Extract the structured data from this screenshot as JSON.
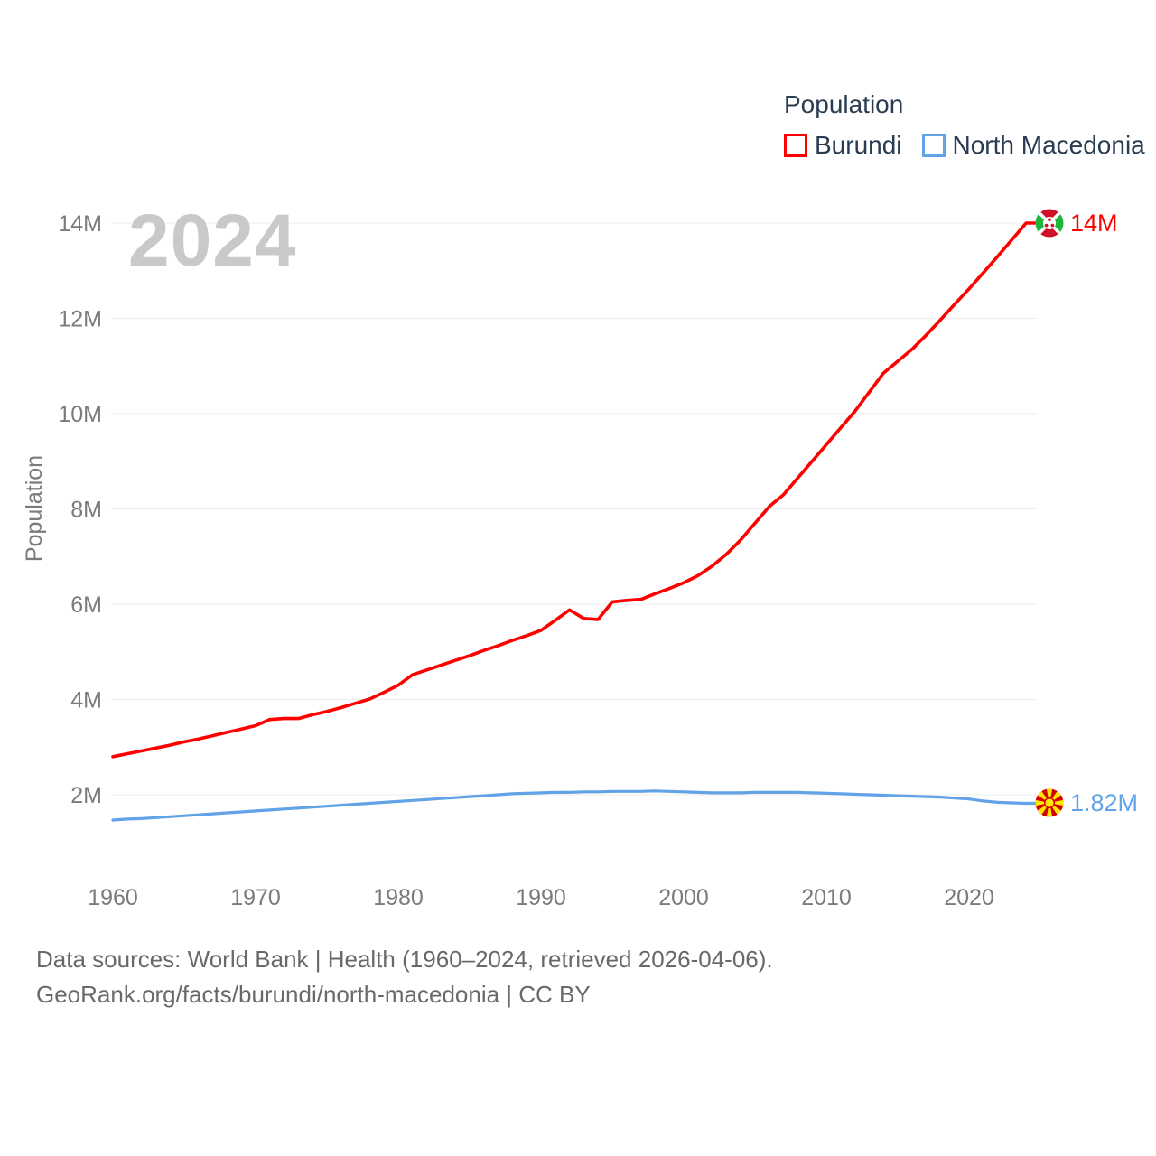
{
  "watermark": "2024",
  "legend": {
    "title": "Population",
    "items": [
      {
        "label": "Burundi",
        "color": "#ff0000"
      },
      {
        "label": "North Macedonia",
        "color": "#61a3e6"
      }
    ]
  },
  "chart_data": {
    "type": "line",
    "title": "Population",
    "xlabel": "",
    "ylabel": "Population",
    "xlim": [
      1960,
      2024
    ],
    "ylim": [
      1.3,
      14.3
    ],
    "grid": "horizontal",
    "legend_position": "top-right",
    "x_ticks": [
      1960,
      1970,
      1980,
      1990,
      2000,
      2010,
      2020
    ],
    "y_ticks": [
      {
        "value": 2,
        "label": "2M"
      },
      {
        "value": 4,
        "label": "4M"
      },
      {
        "value": 6,
        "label": "6M"
      },
      {
        "value": 8,
        "label": "8M"
      },
      {
        "value": 10,
        "label": "10M"
      },
      {
        "value": 12,
        "label": "12M"
      },
      {
        "value": 14,
        "label": "14M"
      }
    ],
    "x": [
      1960,
      1961,
      1962,
      1963,
      1964,
      1965,
      1966,
      1967,
      1968,
      1969,
      1970,
      1971,
      1972,
      1973,
      1974,
      1975,
      1976,
      1977,
      1978,
      1979,
      1980,
      1981,
      1982,
      1983,
      1984,
      1985,
      1986,
      1987,
      1988,
      1989,
      1990,
      1991,
      1992,
      1993,
      1994,
      1995,
      1996,
      1997,
      1998,
      1999,
      2000,
      2001,
      2002,
      2003,
      2004,
      2005,
      2006,
      2007,
      2008,
      2009,
      2010,
      2011,
      2012,
      2013,
      2014,
      2015,
      2016,
      2017,
      2018,
      2019,
      2020,
      2021,
      2022,
      2023,
      2024
    ],
    "series": [
      {
        "name": "Burundi",
        "color": "#ff0000",
        "end_label": "14M",
        "flag": "burundi-flag",
        "values": [
          2.8,
          2.86,
          2.92,
          2.98,
          3.04,
          3.11,
          3.17,
          3.24,
          3.31,
          3.38,
          3.45,
          3.58,
          3.6,
          3.6,
          3.68,
          3.75,
          3.83,
          3.92,
          4.01,
          4.15,
          4.3,
          4.52,
          4.62,
          4.72,
          4.82,
          4.92,
          5.03,
          5.13,
          5.24,
          5.34,
          5.45,
          5.66,
          5.88,
          5.7,
          5.68,
          6.05,
          6.08,
          6.1,
          6.22,
          6.33,
          6.45,
          6.6,
          6.8,
          7.05,
          7.35,
          7.7,
          8.05,
          8.3,
          8.65,
          9.0,
          9.35,
          9.7,
          10.05,
          10.45,
          10.85,
          11.1,
          11.35,
          11.65,
          11.97,
          12.3,
          12.62,
          12.96,
          13.3,
          13.65,
          14.0
        ]
      },
      {
        "name": "North Macedonia",
        "color": "#61a3e6",
        "end_label": "1.82M",
        "flag": "north-macedonia-flag",
        "values": [
          1.47,
          1.49,
          1.5,
          1.52,
          1.54,
          1.56,
          1.58,
          1.6,
          1.62,
          1.64,
          1.66,
          1.68,
          1.7,
          1.72,
          1.74,
          1.76,
          1.78,
          1.8,
          1.82,
          1.84,
          1.86,
          1.88,
          1.9,
          1.92,
          1.94,
          1.96,
          1.98,
          2.0,
          2.02,
          2.03,
          2.04,
          2.05,
          2.05,
          2.06,
          2.06,
          2.07,
          2.07,
          2.07,
          2.08,
          2.07,
          2.06,
          2.05,
          2.04,
          2.04,
          2.04,
          2.05,
          2.05,
          2.05,
          2.05,
          2.04,
          2.03,
          2.02,
          2.01,
          2.0,
          1.99,
          1.98,
          1.97,
          1.96,
          1.95,
          1.93,
          1.91,
          1.87,
          1.84,
          1.83,
          1.82
        ]
      }
    ]
  },
  "colors": {
    "grid": "#ececec",
    "tick_text": "#7b7b7b",
    "axis_title_text": "#7b7b7b",
    "legend_text": "#2a3c52",
    "watermark": "#c9c9c9",
    "footer_text": "#696969"
  },
  "footer": {
    "line1": "Data sources: World Bank | Health (1960–2024, retrieved 2026-04-06).",
    "line2": "GeoRank.org/facts/burundi/north-macedonia | CC BY"
  }
}
